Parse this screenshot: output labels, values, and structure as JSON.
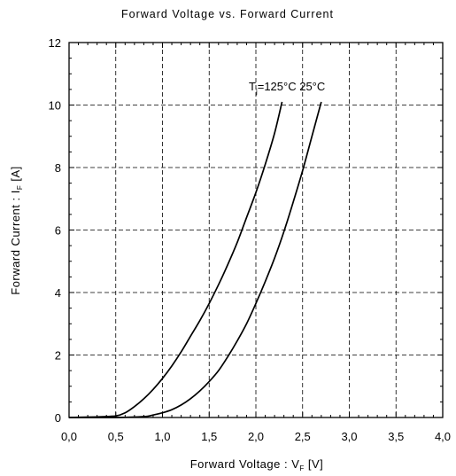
{
  "chart_data": {
    "type": "line",
    "title": "Forward Voltage  vs.  Forward Current",
    "xlabel": {
      "prefix": "Forward Voltage  :  V",
      "sub": "F",
      "suffix": "  [V]"
    },
    "ylabel": {
      "prefix": "Forward Current  :  I",
      "sub": "F",
      "suffix": "  [A]"
    },
    "xlim": [
      0,
      4
    ],
    "ylim": [
      0,
      12
    ],
    "xticks": [
      0,
      0.5,
      1,
      1.5,
      2,
      2.5,
      3,
      3.5,
      4
    ],
    "xtick_labels": [
      "0,0",
      "0,5",
      "1,0",
      "1,5",
      "2,0",
      "2,5",
      "3,0",
      "3,5",
      "4,0"
    ],
    "yticks": [
      0,
      2,
      4,
      6,
      8,
      10,
      12
    ],
    "ytick_labels": [
      "0",
      "2",
      "4",
      "6",
      "8",
      "10",
      "12"
    ],
    "grid": true,
    "annotation": {
      "prefix": "T",
      "sub": "j",
      "text": "=125°C 25°C"
    },
    "series": [
      {
        "x": [
          0.0,
          0.3,
          0.5,
          0.6,
          0.7,
          0.8,
          0.9,
          1.0,
          1.1,
          1.2,
          1.3,
          1.4,
          1.5,
          1.6,
          1.7,
          1.8,
          1.9,
          2.0,
          2.1,
          2.2,
          2.28
        ],
        "y": [
          0.0,
          0.02,
          0.05,
          0.15,
          0.35,
          0.6,
          0.9,
          1.25,
          1.65,
          2.1,
          2.6,
          3.1,
          3.65,
          4.25,
          4.9,
          5.6,
          6.4,
          7.2,
          8.1,
          9.1,
          10.1
        ]
      },
      {
        "x": [
          0.0,
          0.5,
          0.8,
          0.9,
          1.0,
          1.1,
          1.2,
          1.3,
          1.4,
          1.5,
          1.6,
          1.7,
          1.8,
          1.9,
          2.0,
          2.1,
          2.2,
          2.3,
          2.4,
          2.5,
          2.6,
          2.7
        ],
        "y": [
          0.0,
          0.0,
          0.03,
          0.08,
          0.15,
          0.25,
          0.4,
          0.6,
          0.85,
          1.15,
          1.5,
          1.95,
          2.45,
          3.0,
          3.65,
          4.35,
          5.1,
          5.95,
          6.9,
          7.9,
          9.0,
          10.1
        ]
      }
    ]
  }
}
